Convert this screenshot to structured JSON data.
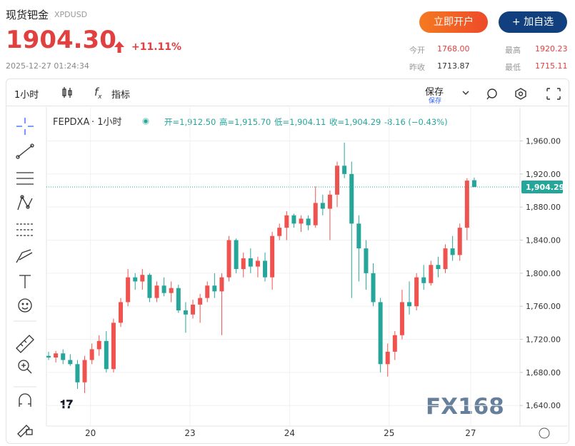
{
  "header": {
    "name": "现货钯金",
    "code": "XPDUSD",
    "price": "1904.30",
    "change": "+11.11%",
    "time": "2025-12-27 01:24:34"
  },
  "buttons": [
    "立即开户",
    "+ 加自选"
  ],
  "stats": [
    {
      "label": "今开",
      "value": "1768.00"
    },
    {
      "label": "最高",
      "value": "1920.23"
    },
    {
      "label": "昨收",
      "value": "1713.87"
    },
    {
      "label": "最低",
      "value": "1715.11"
    }
  ],
  "toolbar": {
    "interval": "1小时",
    "indicators": "指标",
    "save": "保存",
    "save_sub": "保存"
  },
  "watermark": "FX168",
  "chart_data": {
    "type": "candlestick",
    "legend": {
      "symbol": "FEPDXA",
      "interval": "· 1小时",
      "open": "开=1,912.50",
      "high": "高=1,915.70",
      "low": "低=1,904.11",
      "close": "收=1,904.29",
      "change": "-8.16 (−0.43%)"
    },
    "up_color": "#ef5350",
    "down_color": "#26a69a",
    "series": [
      {
        "name": "FEPDXA",
        "candles": [
          [
            1700,
            1705,
            1695,
            1698
          ],
          [
            1698,
            1706,
            1692,
            1703
          ],
          [
            1703,
            1708,
            1690,
            1695
          ],
          [
            1695,
            1702,
            1688,
            1690
          ],
          [
            1690,
            1695,
            1660,
            1668
          ],
          [
            1668,
            1700,
            1655,
            1695
          ],
          [
            1695,
            1715,
            1690,
            1708
          ],
          [
            1708,
            1725,
            1700,
            1718
          ],
          [
            1718,
            1730,
            1680,
            1684
          ],
          [
            1684,
            1745,
            1680,
            1740
          ],
          [
            1740,
            1770,
            1735,
            1765
          ],
          [
            1765,
            1805,
            1760,
            1795
          ],
          [
            1795,
            1800,
            1780,
            1790
          ],
          [
            1790,
            1805,
            1780,
            1798
          ],
          [
            1798,
            1800,
            1765,
            1770
          ],
          [
            1770,
            1790,
            1765,
            1785
          ],
          [
            1785,
            1795,
            1772,
            1776
          ],
          [
            1776,
            1790,
            1765,
            1782
          ],
          [
            1782,
            1786,
            1752,
            1755
          ],
          [
            1755,
            1765,
            1728,
            1750
          ],
          [
            1750,
            1768,
            1745,
            1762
          ],
          [
            1762,
            1775,
            1740,
            1770
          ],
          [
            1770,
            1790,
            1765,
            1785
          ],
          [
            1785,
            1800,
            1770,
            1778
          ],
          [
            1778,
            1800,
            1725,
            1795
          ],
          [
            1795,
            1845,
            1790,
            1840
          ],
          [
            1840,
            1842,
            1800,
            1805
          ],
          [
            1805,
            1825,
            1795,
            1818
          ],
          [
            1818,
            1830,
            1800,
            1808
          ],
          [
            1808,
            1820,
            1795,
            1815
          ],
          [
            1815,
            1825,
            1790,
            1795
          ],
          [
            1795,
            1850,
            1780,
            1845
          ],
          [
            1845,
            1860,
            1840,
            1855
          ],
          [
            1855,
            1875,
            1840,
            1870
          ],
          [
            1870,
            1872,
            1855,
            1860
          ],
          [
            1860,
            1870,
            1850,
            1866
          ],
          [
            1866,
            1870,
            1852,
            1858
          ],
          [
            1858,
            1905,
            1855,
            1885
          ],
          [
            1885,
            1895,
            1870,
            1878
          ],
          [
            1878,
            1900,
            1840,
            1895
          ],
          [
            1895,
            1935,
            1880,
            1930
          ],
          [
            1930,
            1958,
            1915,
            1920
          ],
          [
            1920,
            1935,
            1770,
            1860
          ],
          [
            1860,
            1870,
            1790,
            1830
          ],
          [
            1830,
            1840,
            1780,
            1800
          ],
          [
            1800,
            1812,
            1760,
            1765
          ],
          [
            1765,
            1770,
            1680,
            1690
          ],
          [
            1690,
            1715,
            1675,
            1705
          ],
          [
            1705,
            1730,
            1695,
            1725
          ],
          [
            1725,
            1780,
            1720,
            1765
          ],
          [
            1765,
            1790,
            1750,
            1760
          ],
          [
            1760,
            1800,
            1755,
            1795
          ],
          [
            1795,
            1810,
            1780,
            1788
          ],
          [
            1788,
            1815,
            1785,
            1810
          ],
          [
            1810,
            1820,
            1795,
            1805
          ],
          [
            1805,
            1835,
            1800,
            1830
          ],
          [
            1830,
            1845,
            1815,
            1822
          ],
          [
            1822,
            1860,
            1815,
            1855
          ],
          [
            1855,
            1915,
            1840,
            1912
          ],
          [
            1912.5,
            1915.7,
            1904.11,
            1904.29
          ]
        ]
      }
    ],
    "last_price": {
      "value": 1904.29,
      "label": "1,904.29"
    },
    "ylim": [
      1616,
      2001
    ],
    "yticks": [
      {
        "value": 1960,
        "label": "1,960.00"
      },
      {
        "value": 1920,
        "label": "1,920.00"
      },
      {
        "value": 1880,
        "label": "1,880.00"
      },
      {
        "value": 1840,
        "label": "1,840.00"
      },
      {
        "value": 1800,
        "label": "1,800.00"
      },
      {
        "value": 1760,
        "label": "1,760.00"
      },
      {
        "value": 1720,
        "label": "1,720.00"
      },
      {
        "value": 1680,
        "label": "1,680.00"
      },
      {
        "value": 1640,
        "label": "1,640.00"
      }
    ],
    "xticks": [
      {
        "value": 5.8,
        "label": "20"
      },
      {
        "value": 19.6,
        "label": "23"
      },
      {
        "value": 33.4,
        "label": "24"
      },
      {
        "value": 47.2,
        "label": "25"
      },
      {
        "value": 58.5,
        "label": "27"
      }
    ],
    "grid": true
  }
}
